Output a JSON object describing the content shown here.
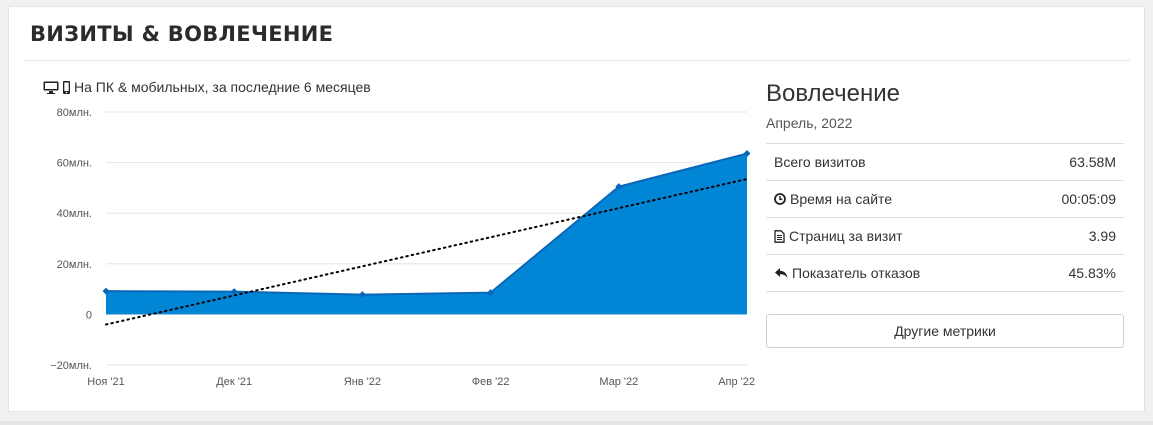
{
  "header": {
    "title": "ВИЗИТЫ & ВОВЛЕЧЕНИЕ"
  },
  "chart_caption": {
    "icons": [
      "desktop-icon",
      "mobile-icon"
    ],
    "text": "На ПК & мобильных, за последние 6 месяцев"
  },
  "chart_data": {
    "type": "area",
    "categories": [
      "Ноя '21",
      "Дек '21",
      "Янв '22",
      "Фев '22",
      "Мар '22",
      "Апр '22"
    ],
    "series": [
      {
        "name": "",
        "values": [
          9.2,
          9.0,
          7.8,
          8.6,
          50.5,
          63.58
        ]
      }
    ],
    "trendline": {
      "style": "dotted",
      "start": -4,
      "end": 53.5
    },
    "ylim": [
      -20,
      80
    ],
    "yticks": [
      {
        "value": 80,
        "label": "80млн."
      },
      {
        "value": 60,
        "label": "60млн."
      },
      {
        "value": 40,
        "label": "40млн."
      },
      {
        "value": 20,
        "label": "20млн."
      },
      {
        "value": 0,
        "label": "0"
      },
      {
        "value": -20,
        "label": "−20млн."
      }
    ],
    "grid": true,
    "colors": {
      "area": "#0086d4",
      "line": "#0a66b8",
      "grid": "#e6e6e6",
      "trend": "#000000"
    }
  },
  "panel": {
    "title": "Вовлечение",
    "subtitle": "Апрель, 2022",
    "metrics": [
      {
        "label": "Всего визитов",
        "value": "63.58M",
        "icon": ""
      },
      {
        "label": "Время на сайте",
        "value": "00:05:09",
        "icon": "clock-icon"
      },
      {
        "label": "Страниц за визит",
        "value": "3.99",
        "icon": "document-icon"
      },
      {
        "label": "Показатель отказов",
        "value": "45.83%",
        "icon": "reply-arrow-icon"
      }
    ],
    "more_button": "Другие метрики"
  }
}
